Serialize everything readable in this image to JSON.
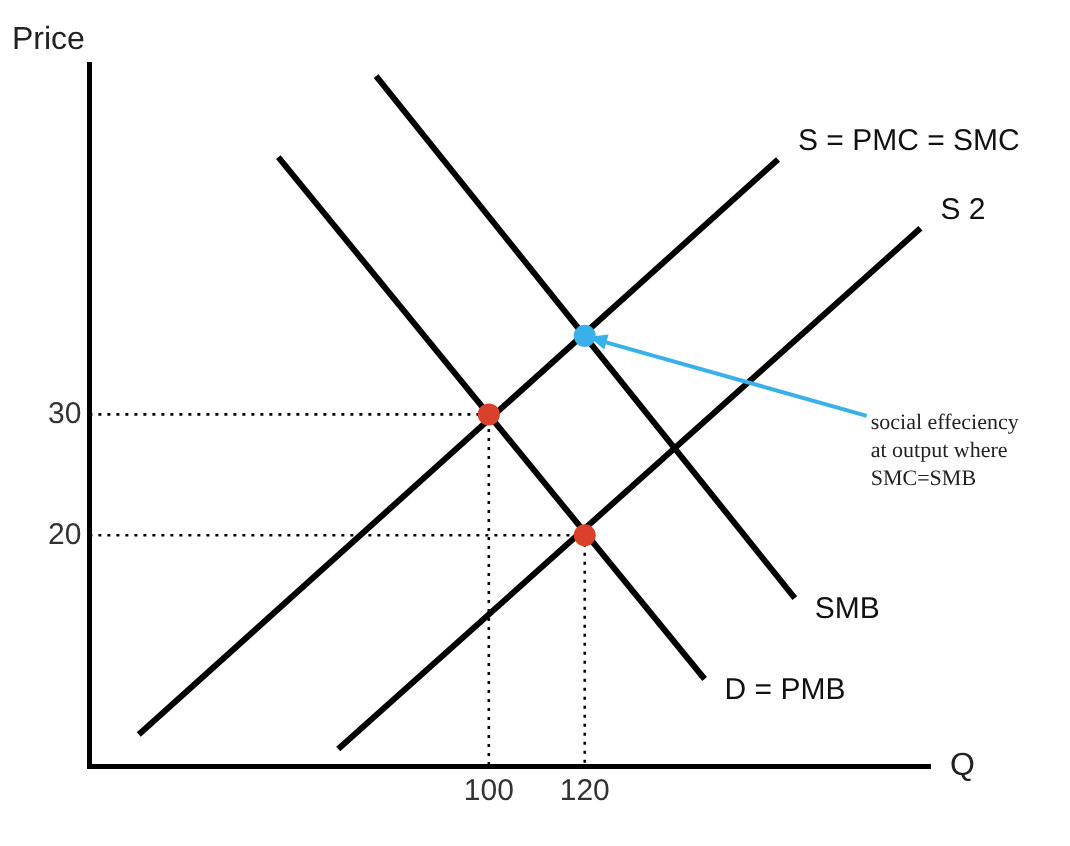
{
  "chart_data": {
    "type": "line",
    "xlabel": "Q",
    "ylabel": "Price",
    "xlim": [
      16.7,
      192
    ],
    "ylim": [
      0.9,
      59
    ],
    "xticks": [
      100,
      120
    ],
    "yticks": [
      20,
      30
    ],
    "grid": false,
    "legend": false,
    "marker": "none",
    "series": [
      {
        "name": "S = PMC = SMC",
        "type": "line",
        "color": "#000000",
        "x": [
          27,
          160.3
        ],
        "values": [
          3.5,
          51.1
        ]
      },
      {
        "name": "S 2",
        "type": "line",
        "color": "#000000",
        "x": [
          68.6,
          190
        ],
        "values": [
          2.3,
          45.4
        ]
      },
      {
        "name": "SMB",
        "type": "line",
        "color": "#000000",
        "x": [
          76.5,
          163.8
        ],
        "values": [
          58,
          14.8
        ]
      },
      {
        "name": "D = PMB",
        "type": "line",
        "color": "#000000",
        "x": [
          56.1,
          145
        ],
        "values": [
          51.3,
          8.1
        ]
      },
      {
        "type": "line",
        "line_style": "dotted",
        "color": "#000000",
        "x": [
          16.7,
          100,
          100
        ],
        "values": [
          30,
          30,
          0.9
        ]
      },
      {
        "type": "line",
        "line_style": "dotted",
        "color": "#000000",
        "x": [
          16.7,
          120,
          120
        ],
        "values": [
          20,
          20,
          0.9
        ]
      },
      {
        "type": "scatter",
        "marker": "circle",
        "color": "#d9412b",
        "x": [
          100,
          120
        ],
        "values": [
          30,
          20
        ]
      },
      {
        "type": "scatter",
        "marker": "circle",
        "color": "#3ab0e8",
        "x": [
          120
        ],
        "values": [
          36.5
        ]
      }
    ],
    "annotations": [
      {
        "text": "social effeciency at output where SMC=SMB",
        "x": 120,
        "y": 36.5
      }
    ]
  }
}
